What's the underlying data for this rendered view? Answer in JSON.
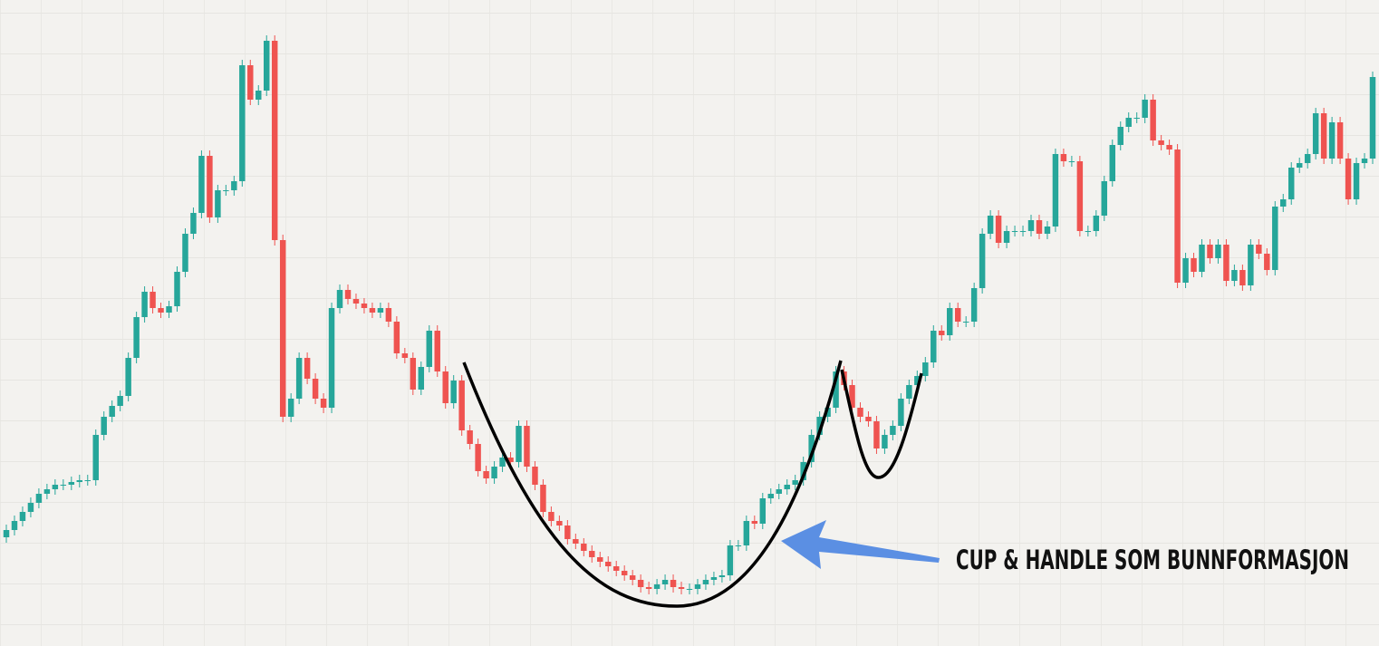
{
  "chart_data": {
    "type": "candlestick",
    "annotation": "CUP & HANDLE SOM BUNNFORMASJON",
    "up_color": "#26a69a",
    "down_color": "#ef5350",
    "ylim": [
      0,
      713
    ],
    "open": [
      120,
      128,
      138,
      148,
      158,
      168,
      173,
      178,
      178,
      181,
      183,
      183,
      233,
      253,
      265,
      276,
      318,
      363,
      391,
      373,
      368,
      375,
      413,
      455,
      478,
      541,
      473,
      503,
      503,
      513,
      641,
      603,
      613,
      668,
      448,
      253,
      273,
      318,
      295,
      273,
      263,
      373,
      393,
      383,
      378,
      373,
      368,
      373,
      358,
      323,
      318,
      283,
      308,
      348,
      303,
      268,
      293,
      238,
      223,
      193,
      185,
      198,
      208,
      203,
      243,
      198,
      178,
      148,
      138,
      133,
      118,
      113,
      105,
      98,
      93,
      88,
      83,
      78,
      73,
      65,
      63,
      68,
      73,
      65,
      63,
      63,
      68,
      73,
      76,
      78,
      111,
      111,
      138,
      135,
      163,
      168,
      173,
      178,
      183,
      203,
      233,
      253,
      263,
      303,
      288,
      263,
      253,
      248,
      218,
      233,
      243,
      273,
      288,
      298,
      313,
      348,
      343,
      373,
      358,
      358,
      395,
      455,
      475,
      445,
      458,
      458,
      458,
      470,
      455,
      463,
      543,
      535,
      535,
      458,
      458,
      475,
      513,
      553,
      573,
      583,
      583,
      603,
      558,
      553,
      548,
      401,
      428,
      413,
      443,
      428,
      443,
      403,
      415,
      398,
      443,
      433,
      415,
      485,
      493,
      528,
      533,
      543,
      588,
      538,
      578,
      538,
      493,
      533,
      538
    ],
    "high": [
      134,
      144,
      154,
      164,
      174,
      179,
      184,
      184,
      187,
      189,
      189,
      239,
      259,
      271,
      282,
      324,
      369,
      397,
      397,
      379,
      381,
      419,
      461,
      484,
      547,
      547,
      509,
      509,
      519,
      647,
      647,
      619,
      674,
      674,
      454,
      279,
      324,
      324,
      301,
      279,
      379,
      399,
      399,
      389,
      384,
      379,
      379,
      379,
      364,
      329,
      324,
      314,
      354,
      354,
      309,
      299,
      299,
      244,
      229,
      199,
      204,
      214,
      214,
      249,
      249,
      204,
      184,
      154,
      144,
      139,
      124,
      119,
      111,
      104,
      99,
      94,
      89,
      84,
      79,
      71,
      74,
      79,
      79,
      71,
      69,
      74,
      79,
      82,
      84,
      117,
      117,
      144,
      144,
      169,
      174,
      179,
      184,
      189,
      209,
      239,
      259,
      269,
      309,
      309,
      294,
      269,
      259,
      254,
      239,
      249,
      279,
      294,
      304,
      319,
      354,
      354,
      379,
      379,
      364,
      401,
      461,
      481,
      481,
      464,
      464,
      464,
      476,
      476,
      469,
      549,
      549,
      541,
      541,
      464,
      481,
      519,
      559,
      579,
      589,
      589,
      609,
      609,
      564,
      559,
      554,
      434,
      434,
      449,
      449,
      449,
      449,
      421,
      421,
      449,
      449,
      439,
      491,
      499,
      534,
      539,
      549,
      594,
      594,
      584,
      584,
      544,
      539,
      544,
      634
    ],
    "low": [
      114,
      122,
      132,
      142,
      152,
      162,
      167,
      172,
      172,
      175,
      177,
      177,
      227,
      247,
      259,
      270,
      312,
      357,
      367,
      362,
      362,
      369,
      407,
      449,
      472,
      467,
      467,
      497,
      497,
      507,
      597,
      597,
      607,
      442,
      247,
      247,
      267,
      289,
      267,
      257,
      257,
      367,
      377,
      372,
      367,
      362,
      362,
      352,
      317,
      312,
      277,
      277,
      302,
      297,
      262,
      262,
      232,
      217,
      187,
      179,
      179,
      192,
      197,
      197,
      192,
      172,
      142,
      132,
      127,
      112,
      107,
      99,
      92,
      87,
      82,
      77,
      72,
      67,
      59,
      57,
      57,
      62,
      59,
      57,
      57,
      57,
      62,
      67,
      70,
      72,
      105,
      105,
      129,
      129,
      157,
      162,
      167,
      172,
      177,
      197,
      227,
      247,
      257,
      282,
      257,
      247,
      242,
      212,
      212,
      227,
      237,
      267,
      282,
      292,
      307,
      337,
      337,
      352,
      352,
      352,
      389,
      449,
      439,
      439,
      452,
      452,
      452,
      449,
      449,
      457,
      529,
      529,
      452,
      452,
      452,
      469,
      507,
      547,
      567,
      577,
      577,
      552,
      547,
      542,
      395,
      395,
      407,
      407,
      422,
      422,
      397,
      397,
      392,
      392,
      427,
      409,
      409,
      479,
      487,
      522,
      527,
      537,
      532,
      532,
      532,
      487,
      487,
      527,
      532
    ],
    "close": [
      128,
      138,
      148,
      158,
      168,
      173,
      178,
      178,
      181,
      183,
      183,
      233,
      253,
      265,
      276,
      318,
      363,
      391,
      373,
      368,
      375,
      413,
      455,
      478,
      541,
      473,
      503,
      503,
      513,
      641,
      603,
      613,
      668,
      448,
      253,
      273,
      318,
      295,
      273,
      263,
      373,
      393,
      383,
      378,
      373,
      368,
      373,
      358,
      323,
      318,
      283,
      308,
      348,
      303,
      268,
      293,
      238,
      223,
      193,
      185,
      198,
      208,
      203,
      243,
      198,
      178,
      148,
      138,
      133,
      118,
      113,
      105,
      98,
      93,
      88,
      83,
      78,
      73,
      65,
      63,
      68,
      73,
      65,
      63,
      63,
      68,
      73,
      76,
      78,
      111,
      111,
      138,
      135,
      163,
      168,
      173,
      178,
      183,
      203,
      233,
      253,
      263,
      303,
      288,
      263,
      253,
      248,
      218,
      233,
      243,
      273,
      288,
      298,
      313,
      348,
      343,
      373,
      358,
      358,
      395,
      455,
      475,
      445,
      458,
      458,
      458,
      470,
      455,
      463,
      543,
      535,
      535,
      458,
      458,
      475,
      513,
      553,
      573,
      583,
      583,
      603,
      558,
      553,
      548,
      401,
      428,
      413,
      443,
      428,
      443,
      403,
      415,
      398,
      443,
      433,
      415,
      485,
      493,
      528,
      533,
      543,
      588,
      538,
      578,
      538,
      493,
      533,
      538,
      628
    ]
  }
}
